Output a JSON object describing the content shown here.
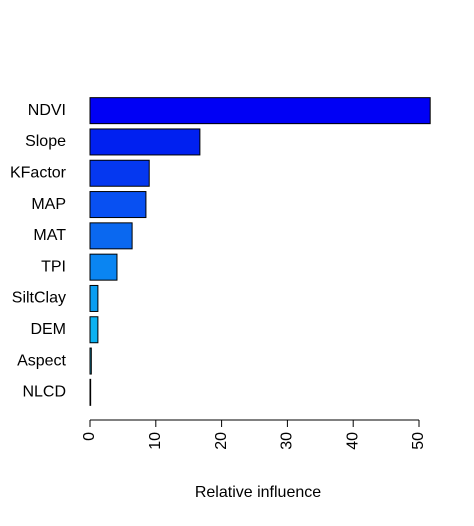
{
  "chart_data": {
    "type": "barh",
    "categories": [
      "NDVI",
      "Slope",
      "KFactor",
      "MAP",
      "MAT",
      "TPI",
      "SiltClay",
      "DEM",
      "Aspect",
      "NLCD"
    ],
    "values": [
      51.7,
      16.7,
      9.0,
      8.5,
      6.4,
      4.1,
      1.2,
      1.2,
      0.2,
      0.1
    ],
    "colors": [
      "#0000f5",
      "#0020f0",
      "#0538f0",
      "#0850f2",
      "#0a68f0",
      "#0a85f2",
      "#0a9ef2",
      "#0bb2f2",
      "#10c0f2",
      "#14ccf2"
    ],
    "xlabel": "Relative influence",
    "xlim": [
      0,
      50
    ],
    "xticks": [
      0,
      10,
      20,
      30,
      40,
      50
    ]
  }
}
